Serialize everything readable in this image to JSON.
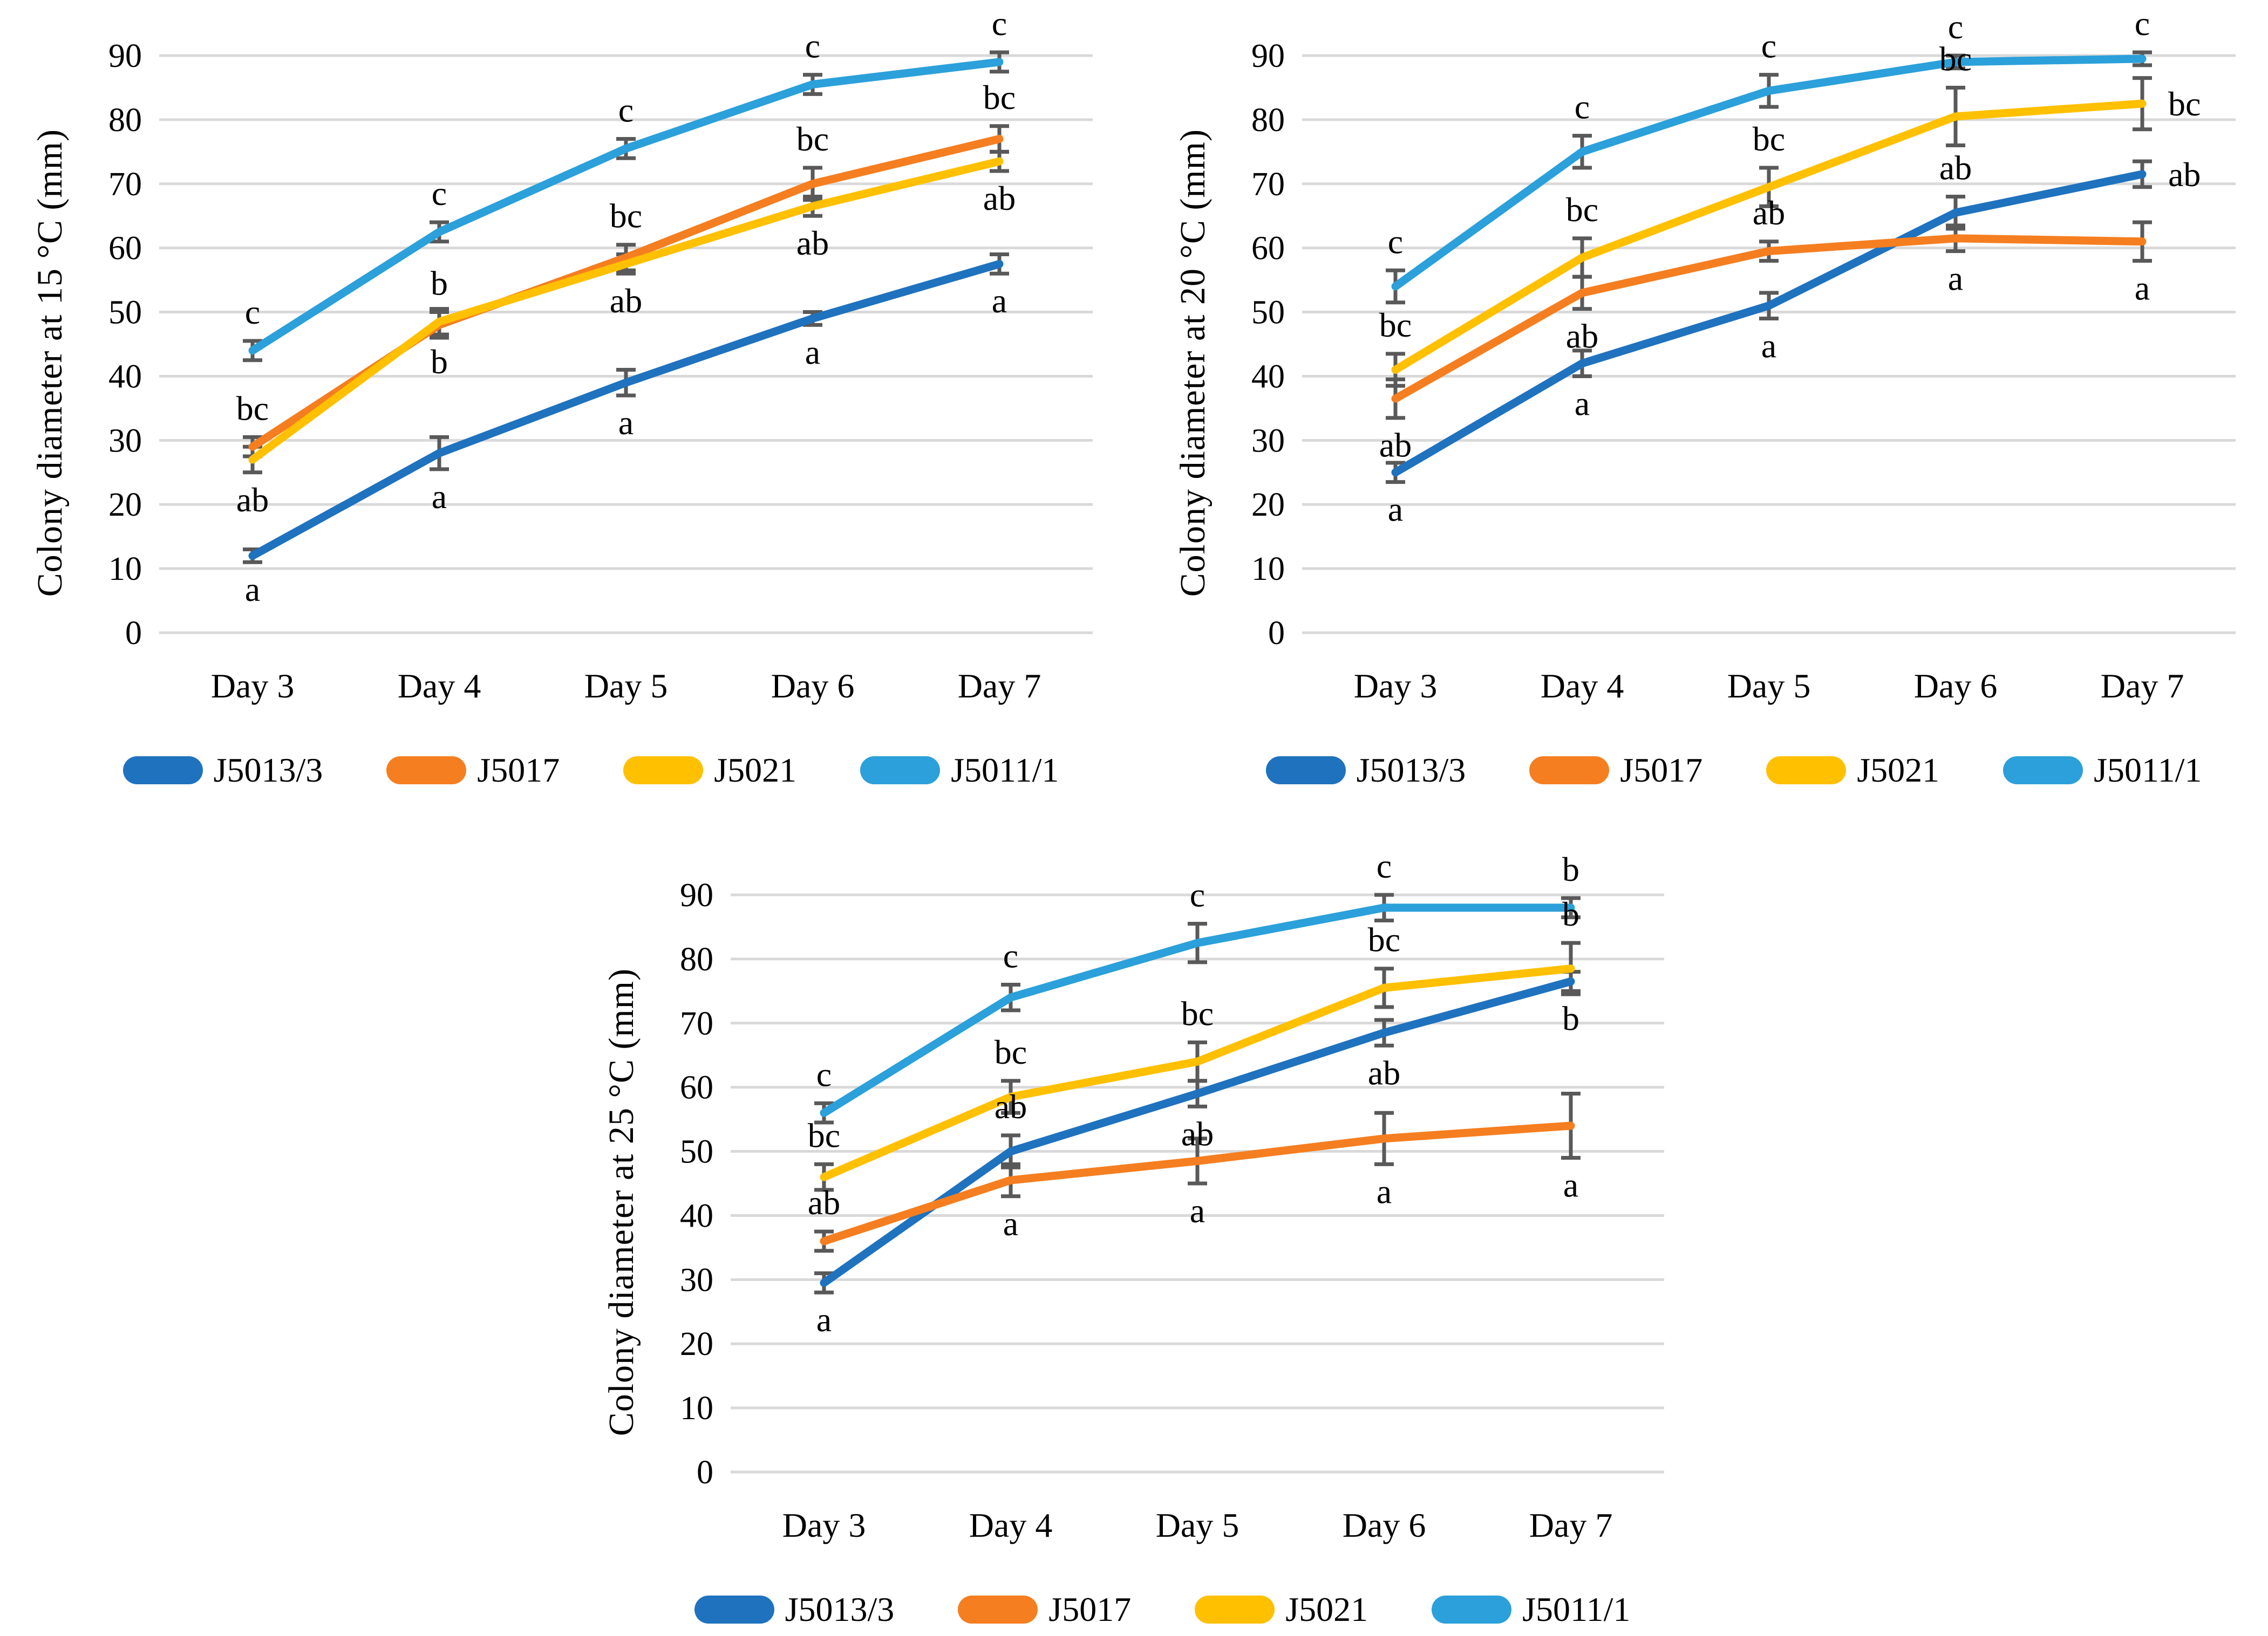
{
  "style": {
    "background": "#FFFFFF",
    "gridline_color": "#D9D9D9",
    "error_bar_color": "#595959",
    "text_color": "#000000"
  },
  "chart_data": [
    {
      "type": "line",
      "ylabel": "Colony diameter at 15 °C (mm)",
      "categories": [
        "Day 3",
        "Day 4",
        "Day 5",
        "Day 6",
        "Day 7"
      ],
      "ylim": [
        0,
        90
      ],
      "ytick_step": 10,
      "grid": true,
      "legend_position": "bottom",
      "series": [
        {
          "name": "J5013/3",
          "color": "#1F72BE",
          "values": [
            12,
            28,
            39,
            49,
            57.5
          ],
          "errors": [
            1,
            2.5,
            2,
            1,
            1.5
          ],
          "letters": [
            "a",
            "a",
            "a",
            "a",
            "a"
          ],
          "letter_pos": [
            "below",
            "below",
            "below",
            "below",
            "below"
          ]
        },
        {
          "name": "J5017",
          "color": "#F57E20",
          "values": [
            29,
            48,
            58.5,
            70,
            77
          ],
          "errors": [
            1.5,
            2,
            2,
            2.5,
            2
          ],
          "letters": [
            "bc",
            "b",
            "bc",
            "bc",
            "bc"
          ],
          "letter_pos": [
            "above",
            "above",
            "above",
            "above",
            "above"
          ]
        },
        {
          "name": "J5021",
          "color": "#FFC000",
          "values": [
            27,
            48.5,
            57.5,
            66.5,
            73.5
          ],
          "errors": [
            2,
            2,
            1.5,
            1.5,
            1.5
          ],
          "letters": [
            "ab",
            "b",
            "ab",
            "ab",
            "ab"
          ],
          "letter_pos": [
            "below",
            "below",
            "below",
            "below",
            "below"
          ]
        },
        {
          "name": "J5011/1",
          "color": "#2BA0DA",
          "values": [
            44,
            62.5,
            75.5,
            85.5,
            89
          ],
          "errors": [
            1.5,
            1.5,
            1.5,
            1.5,
            1.5
          ],
          "letters": [
            "c",
            "c",
            "c",
            "c",
            "c"
          ],
          "letter_pos": [
            "above",
            "above",
            "above",
            "above",
            "above"
          ]
        }
      ]
    },
    {
      "type": "line",
      "ylabel": "Colony diameter at 20 °C (mm)",
      "categories": [
        "Day 3",
        "Day 4",
        "Day 5",
        "Day 6",
        "Day 7"
      ],
      "ylim": [
        0,
        90
      ],
      "ytick_step": 10,
      "grid": true,
      "legend_position": "bottom",
      "series": [
        {
          "name": "J5013/3",
          "color": "#1F72BE",
          "values": [
            25,
            42,
            51,
            65.5,
            71.5
          ],
          "errors": [
            1.5,
            2,
            2,
            2.5,
            2
          ],
          "letters": [
            "a",
            "a",
            "a",
            "ab",
            "ab"
          ],
          "letter_pos": [
            "below",
            "below",
            "below",
            "above",
            "right"
          ]
        },
        {
          "name": "J5017",
          "color": "#F57E20",
          "values": [
            36.5,
            53,
            59.5,
            61.5,
            61
          ],
          "errors": [
            3,
            2.5,
            1.5,
            2,
            3
          ],
          "letters": [
            "ab",
            "ab",
            "ab",
            "a",
            "a"
          ],
          "letter_pos": [
            "below",
            "below",
            "above",
            "below",
            "below"
          ]
        },
        {
          "name": "J5021",
          "color": "#FFC000",
          "values": [
            41,
            58.5,
            69.5,
            80.5,
            82.5
          ],
          "errors": [
            2.5,
            3,
            3,
            4.5,
            4
          ],
          "letters": [
            "bc",
            "bc",
            "bc",
            "bc",
            "bc"
          ],
          "letter_pos": [
            "above",
            "above",
            "above",
            "above",
            "right"
          ]
        },
        {
          "name": "J5011/1",
          "color": "#2BA0DA",
          "values": [
            54,
            75,
            84.5,
            89,
            89.5
          ],
          "errors": [
            2.5,
            2.5,
            2.5,
            1,
            1
          ],
          "letters": [
            "c",
            "c",
            "c",
            "c",
            "c"
          ],
          "letter_pos": [
            "above",
            "above",
            "above",
            "above",
            "above"
          ]
        }
      ]
    },
    {
      "type": "line",
      "ylabel": "Colony diameter at 25 °C (mm)",
      "categories": [
        "Day 3",
        "Day 4",
        "Day 5",
        "Day 6",
        "Day 7"
      ],
      "ylim": [
        0,
        90
      ],
      "ytick_step": 10,
      "grid": true,
      "legend_position": "bottom",
      "series": [
        {
          "name": "J5013/3",
          "color": "#1F72BE",
          "values": [
            29.5,
            50,
            59,
            68.5,
            76.5
          ],
          "errors": [
            1.5,
            2.5,
            2,
            2,
            1.5
          ],
          "letters": [
            "a",
            "ab",
            "ab",
            "ab",
            "b"
          ],
          "letter_pos": [
            "below",
            "above",
            "below",
            "below",
            "below"
          ]
        },
        {
          "name": "J5017",
          "color": "#F57E20",
          "values": [
            36,
            45.5,
            48.5,
            52,
            54
          ],
          "errors": [
            1.5,
            2.5,
            3.5,
            4,
            5
          ],
          "letters": [
            "ab",
            "a",
            "a",
            "a",
            "a"
          ],
          "letter_pos": [
            "above",
            "below",
            "below",
            "below",
            "below"
          ]
        },
        {
          "name": "J5021",
          "color": "#FFC000",
          "values": [
            46,
            58.5,
            64,
            75.5,
            78.5
          ],
          "errors": [
            2,
            2.5,
            3,
            3,
            4
          ],
          "letters": [
            "bc",
            "bc",
            "bc",
            "bc",
            "b"
          ],
          "letter_pos": [
            "above",
            "above",
            "above",
            "above",
            "above"
          ]
        },
        {
          "name": "J5011/1",
          "color": "#2BA0DA",
          "values": [
            56,
            74,
            82.5,
            88,
            88
          ],
          "errors": [
            1.5,
            2,
            3,
            2,
            1.5
          ],
          "letters": [
            "c",
            "c",
            "c",
            "c",
            "b"
          ],
          "letter_pos": [
            "above",
            "above",
            "above",
            "above",
            "above"
          ]
        }
      ]
    }
  ]
}
